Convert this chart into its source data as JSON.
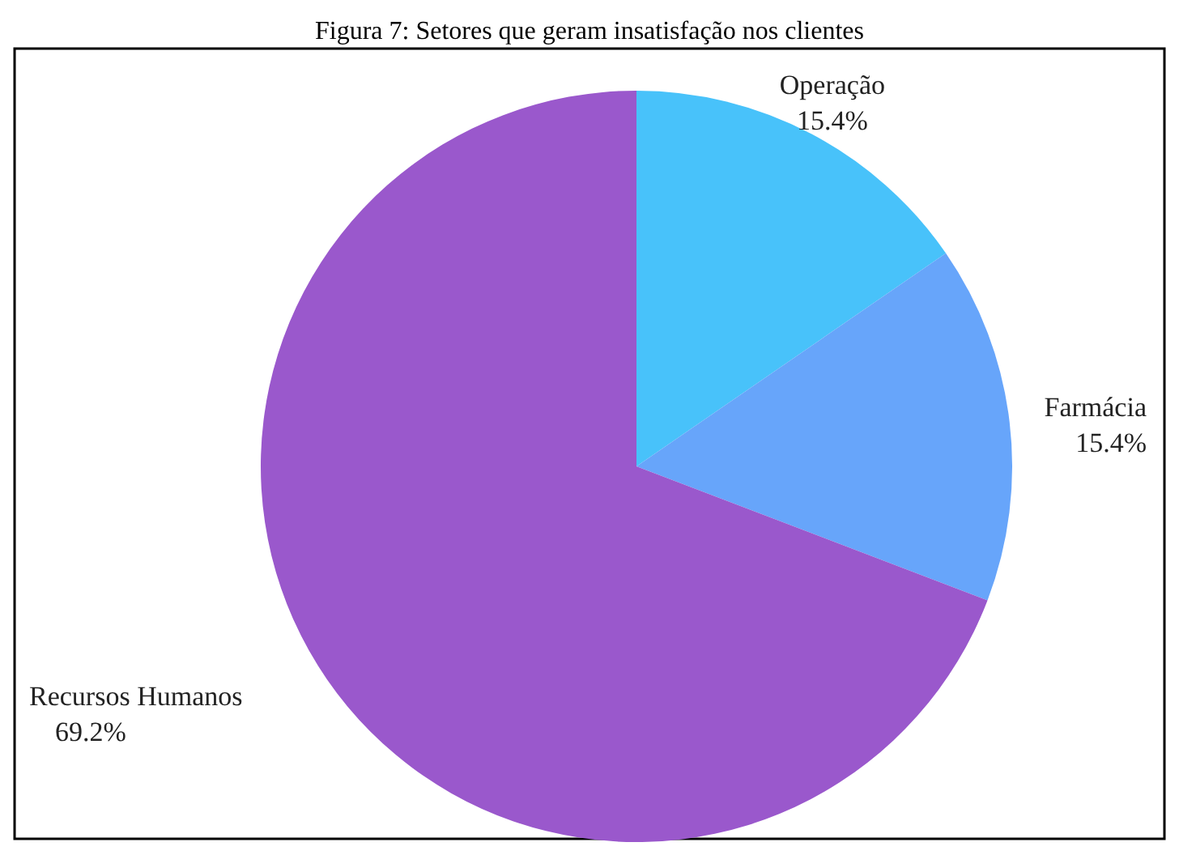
{
  "chart_data": {
    "type": "pie",
    "title": "Figura 7: Setores que geram insatisfação nos clientes",
    "categories": [
      "Operação",
      "Farmácia",
      "Recursos Humanos"
    ],
    "values": [
      15.4,
      15.4,
      69.2
    ],
    "colors": [
      "#48c2fa",
      "#67a5fa",
      "#9a58cc"
    ],
    "value_labels": [
      "15.4%",
      "15.4%",
      "69.2%"
    ]
  }
}
